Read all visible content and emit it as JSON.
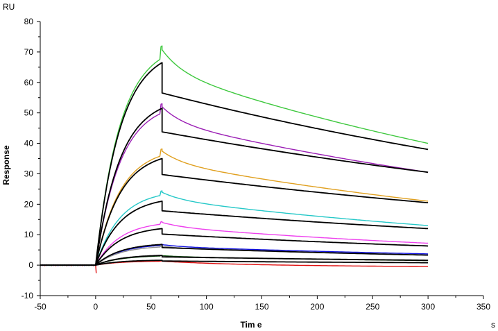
{
  "chart_data": {
    "type": "line",
    "title": "",
    "xlabel": "Tim e",
    "ylabel": "Response",
    "x_unit": "s",
    "y_unit": "RU",
    "xlim": [
      -50,
      350
    ],
    "ylim": [
      -10,
      80
    ],
    "x_ticks": [
      "-50",
      "0",
      "50",
      "100",
      "150",
      "200",
      "250",
      "300",
      "350"
    ],
    "y_ticks": [
      "-10",
      "0",
      "10",
      "20",
      "30",
      "40",
      "50",
      "60",
      "70",
      "80"
    ],
    "grid": false,
    "legend": "none",
    "association_end_s": 60,
    "dissociation_end_s": 300,
    "series": [
      {
        "color": "#3ec83e",
        "peak": 68,
        "end": 40
      },
      {
        "color": "#9b1fb5",
        "peak": 50,
        "end": 30.5
      },
      {
        "color": "#e0a020",
        "peak": 36,
        "end": 21
      },
      {
        "color": "#25c8c8",
        "peak": 23,
        "end": 13
      },
      {
        "color": "#ee40ee",
        "peak": 13.5,
        "end": 7.2
      },
      {
        "color": "#1010e0",
        "peak": 6.5,
        "end": 3.7
      },
      {
        "color": "#8e8e8e",
        "peak": 6,
        "end": 3.3
      },
      {
        "color": "#105010",
        "peak": 3,
        "end": 1.5
      },
      {
        "color": "#e01010",
        "peak": 1.3,
        "end": -0.5
      }
    ],
    "fits": [
      {
        "color": "#000000",
        "peak": 66.5,
        "end": 38
      },
      {
        "color": "#000000",
        "peak": 51.5,
        "end": 30.5
      },
      {
        "color": "#000000",
        "peak": 35,
        "end": 20.5
      },
      {
        "color": "#000000",
        "peak": 21,
        "end": 12
      },
      {
        "color": "#000000",
        "peak": 12,
        "end": 6.3
      },
      {
        "color": "#000000",
        "peak": 6.8,
        "end": 3.3
      },
      {
        "color": "#000000",
        "peak": 3.2,
        "end": 1.6
      },
      {
        "color": "#000000",
        "peak": 1.6,
        "end": 0.8
      }
    ]
  }
}
